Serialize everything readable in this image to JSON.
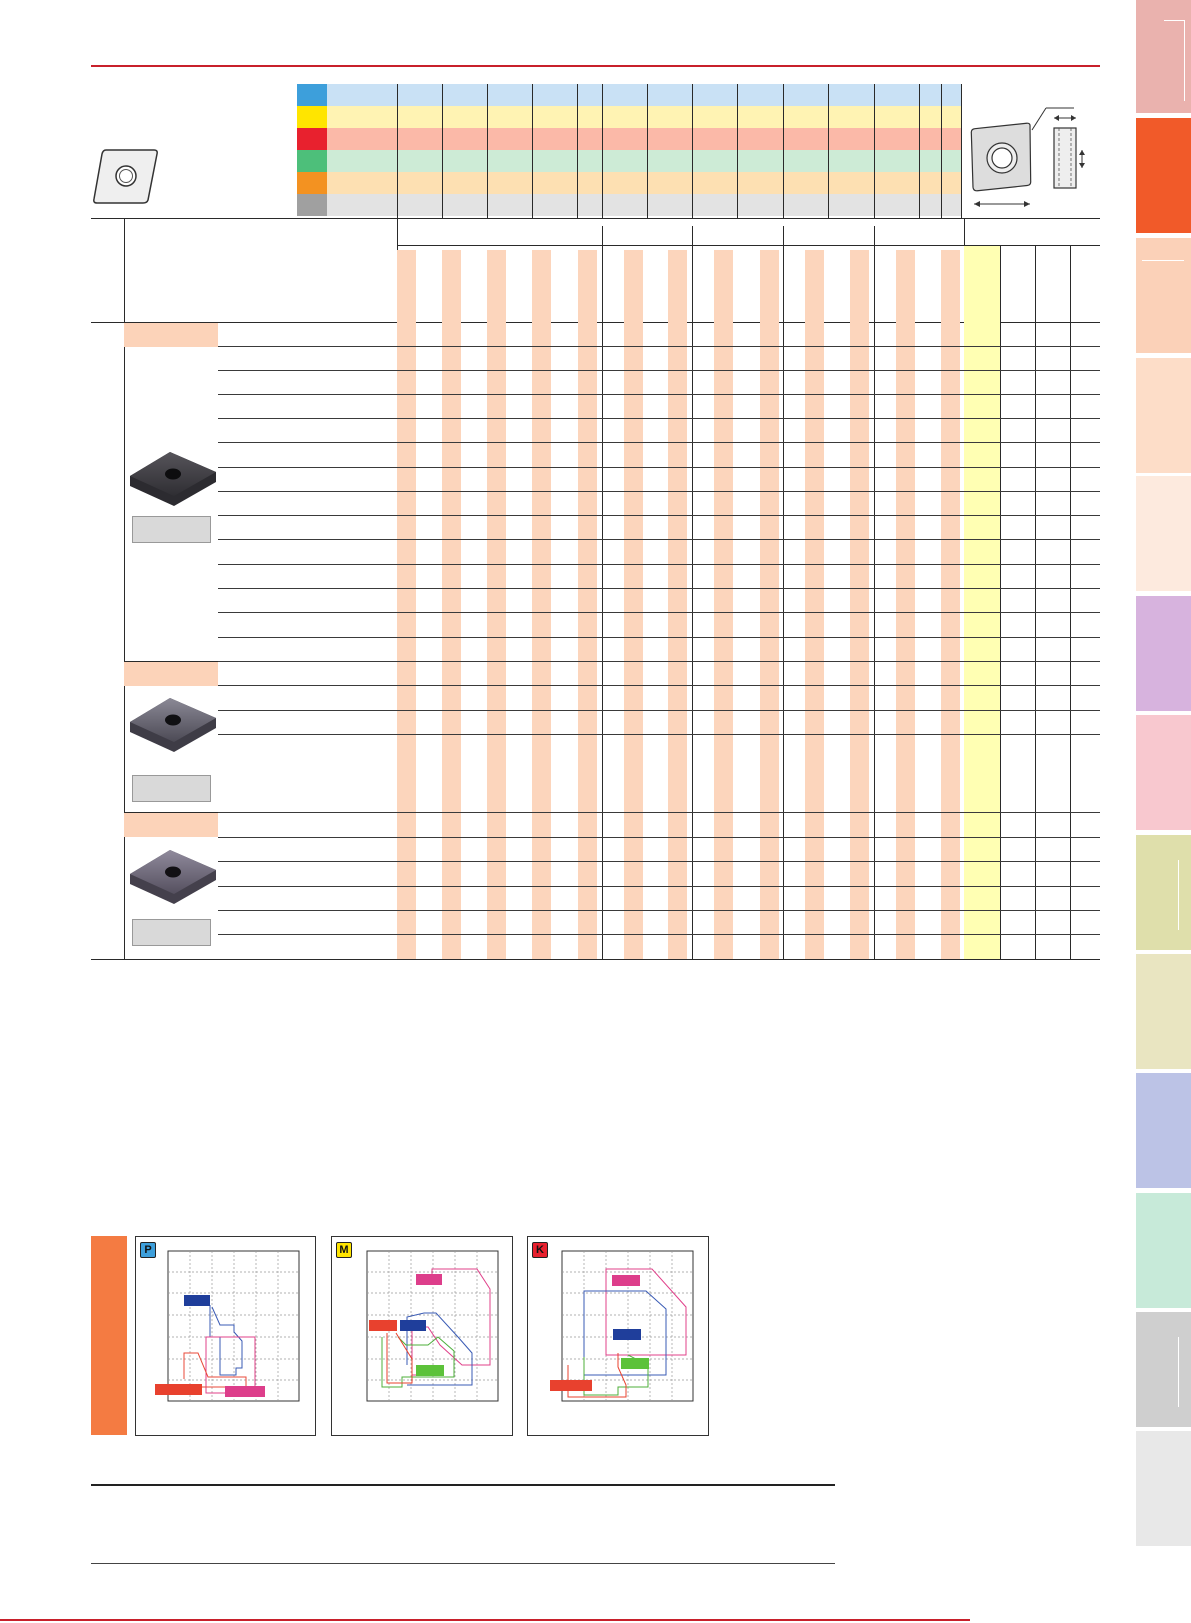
{
  "colors": {
    "top_rule": "#c8202b",
    "material_P": "#3d9fdb",
    "material_M": "#ffe500",
    "material_K": "#e8212e",
    "material_N": "#4dbf7a",
    "material_S": "#f39221",
    "material_H": "#a0a0a0",
    "row_P": "#c9e1f5",
    "row_M": "#fff3b3",
    "row_K": "#fbb9a8",
    "row_N": "#cdebd6",
    "row_S": "#fde0b2",
    "row_H": "#e3e3e3",
    "stripe": "#fcd5bc",
    "yellow_col": "#ffffb3",
    "section_orange": "#f47b42",
    "tabs": [
      "#eab2ae",
      "#f15a29",
      "#fbd1b8",
      "#fdddc8",
      "#fdeade",
      "#d7b3de",
      "#f8c8cf",
      "#dfdfab",
      "#e9e5c1",
      "#bcc3e6",
      "#c7ead9",
      "#cfcfcf",
      "#e8e8e8"
    ]
  },
  "icons": [
    "cnmg-outline-insert-icon",
    "dimension-diagram-icon",
    "negative-insert-photo-icon"
  ],
  "material_chart": {
    "badges": [
      "P",
      "M",
      "K"
    ]
  }
}
